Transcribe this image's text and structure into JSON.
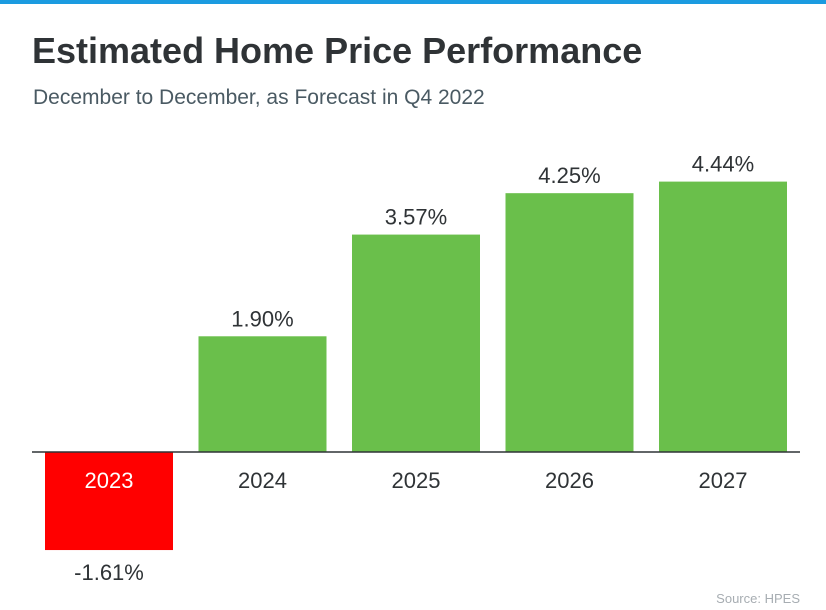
{
  "colors": {
    "accent_bar": "#1b9be0",
    "positive": "#6abf4b",
    "negative": "#ff0000",
    "axis": "#2f3336",
    "title": "#2f3336",
    "subtitle": "#4a5a63",
    "source": "#a7adb2"
  },
  "source": "Source: HPES",
  "chart_data": {
    "type": "bar",
    "title": "Estimated Home Price Performance",
    "subtitle": "December to December, as Forecast in Q4 2022",
    "categories": [
      "2023",
      "2024",
      "2025",
      "2026",
      "2027"
    ],
    "values": [
      -1.61,
      1.9,
      3.57,
      4.25,
      4.44
    ],
    "value_labels": [
      "-1.61%",
      "1.90%",
      "3.57%",
      "4.25%",
      "4.44%"
    ],
    "xlabel": "",
    "ylabel": "",
    "grid": false,
    "legend": "none"
  }
}
